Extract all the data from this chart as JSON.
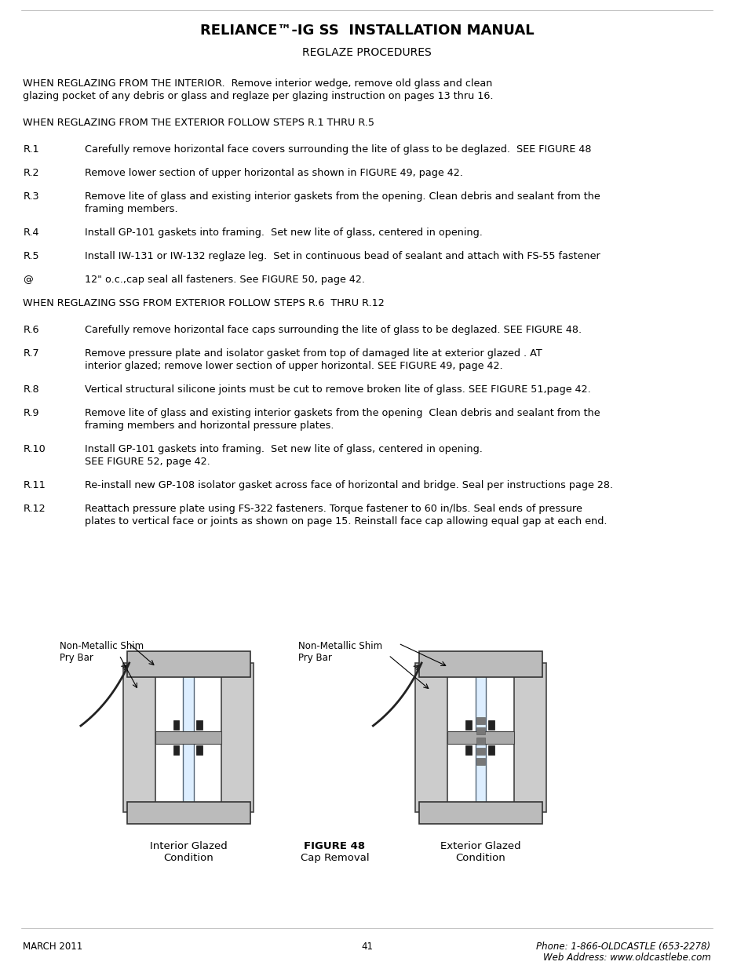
{
  "title": "RELIANCE™-IG SS  INSTALLATION MANUAL",
  "subtitle": "REGLAZE PROCEDURES",
  "bg_color": "#ffffff",
  "text_color": "#000000",
  "title_font_size": 13,
  "subtitle_font_size": 10,
  "body_font_size": 9.2,
  "footer_font_size": 8.5,
  "content": [
    {
      "type": "para",
      "text": "WHEN REGLAZING FROM THE INTERIOR.  Remove interior wedge, remove old glass and clean\nglazing pocket of any debris or glass and reglaze per glazing instruction on pages 13 thru 16.",
      "bold": false
    },
    {
      "type": "para",
      "text": "WHEN REGLAZING FROM THE EXTERIOR FOLLOW STEPS R.1 THRU R.5",
      "bold": false
    },
    {
      "type": "item",
      "label": "R.1",
      "text": "Carefully remove horizontal face covers surrounding the lite of glass to be deglazed.  SEE FIGURE 48"
    },
    {
      "type": "item",
      "label": "R.2",
      "text": "Remove lower section of upper horizontal as shown in FIGURE 49, page 42."
    },
    {
      "type": "item",
      "label": "R.3",
      "text": "Remove lite of glass and existing interior gaskets from the opening. Clean debris and sealant from the\nframing members."
    },
    {
      "type": "item",
      "label": "R.4",
      "text": "Install GP-101 gaskets into framing.  Set new lite of glass, centered in opening."
    },
    {
      "type": "item",
      "label": "R.5",
      "text": "Install IW-131 or IW-132 reglaze leg.  Set in continuous bead of sealant and attach with FS-55 fastener"
    },
    {
      "type": "item",
      "label": "@",
      "text": "12\" o.c.,cap seal all fasteners. See FIGURE 50, page 42."
    },
    {
      "type": "para",
      "text": "WHEN REGLAZING SSG FROM EXTERIOR FOLLOW STEPS R.6  THRU R.12",
      "bold": false
    },
    {
      "type": "item",
      "label": "R.6",
      "text": "Carefully remove horizontal face caps surrounding the lite of glass to be deglazed. SEE FIGURE 48."
    },
    {
      "type": "item",
      "label": "R.7",
      "text": "Remove pressure plate and isolator gasket from top of damaged lite at exterior glazed . AT\ninterior glazed; remove lower section of upper horizontal. SEE FIGURE 49, page 42."
    },
    {
      "type": "item",
      "label": "R.8",
      "text": "Vertical structural silicone joints must be cut to remove broken lite of glass. SEE FIGURE 51,page 42."
    },
    {
      "type": "item",
      "label": "R.9",
      "text": "Remove lite of glass and existing interior gaskets from the opening  Clean debris and sealant from the\nframing members and horizontal pressure plates."
    },
    {
      "type": "item",
      "label": "R.10",
      "text": "Install GP-101 gaskets into framing.  Set new lite of glass, centered in opening.\nSEE FIGURE 52, page 42."
    },
    {
      "type": "item",
      "label": "R.11",
      "text": "Re-install new GP-108 isolator gasket across face of horizontal and bridge. Seal per instructions page 28."
    },
    {
      "type": "item",
      "label": "R.12",
      "text": "Reattach pressure plate using FS-322 fasteners. Torque fastener to 60 in/lbs. Seal ends of pressure\nplates to vertical face or joints as shown on page 15. Reinstall face cap allowing equal gap at each end."
    }
  ],
  "left_label1": "Non-Metallic Shim",
  "left_label2": "Pry Bar",
  "right_label1": "Non-Metallic Shim",
  "right_label2": "Pry Bar",
  "left_caption1": "Interior Glazed",
  "left_caption2": "Condition",
  "center_caption1": "FIGURE 48",
  "center_caption2": "Cap Removal",
  "right_caption1": "Exterior Glazed",
  "right_caption2": "Condition",
  "footer_left": "MARCH 2011",
  "footer_center": "41",
  "footer_right1": "Phone: 1-866-OLDCASTLE (653-2278)",
  "footer_right2": "Web Address: www.oldcastlebe.com"
}
